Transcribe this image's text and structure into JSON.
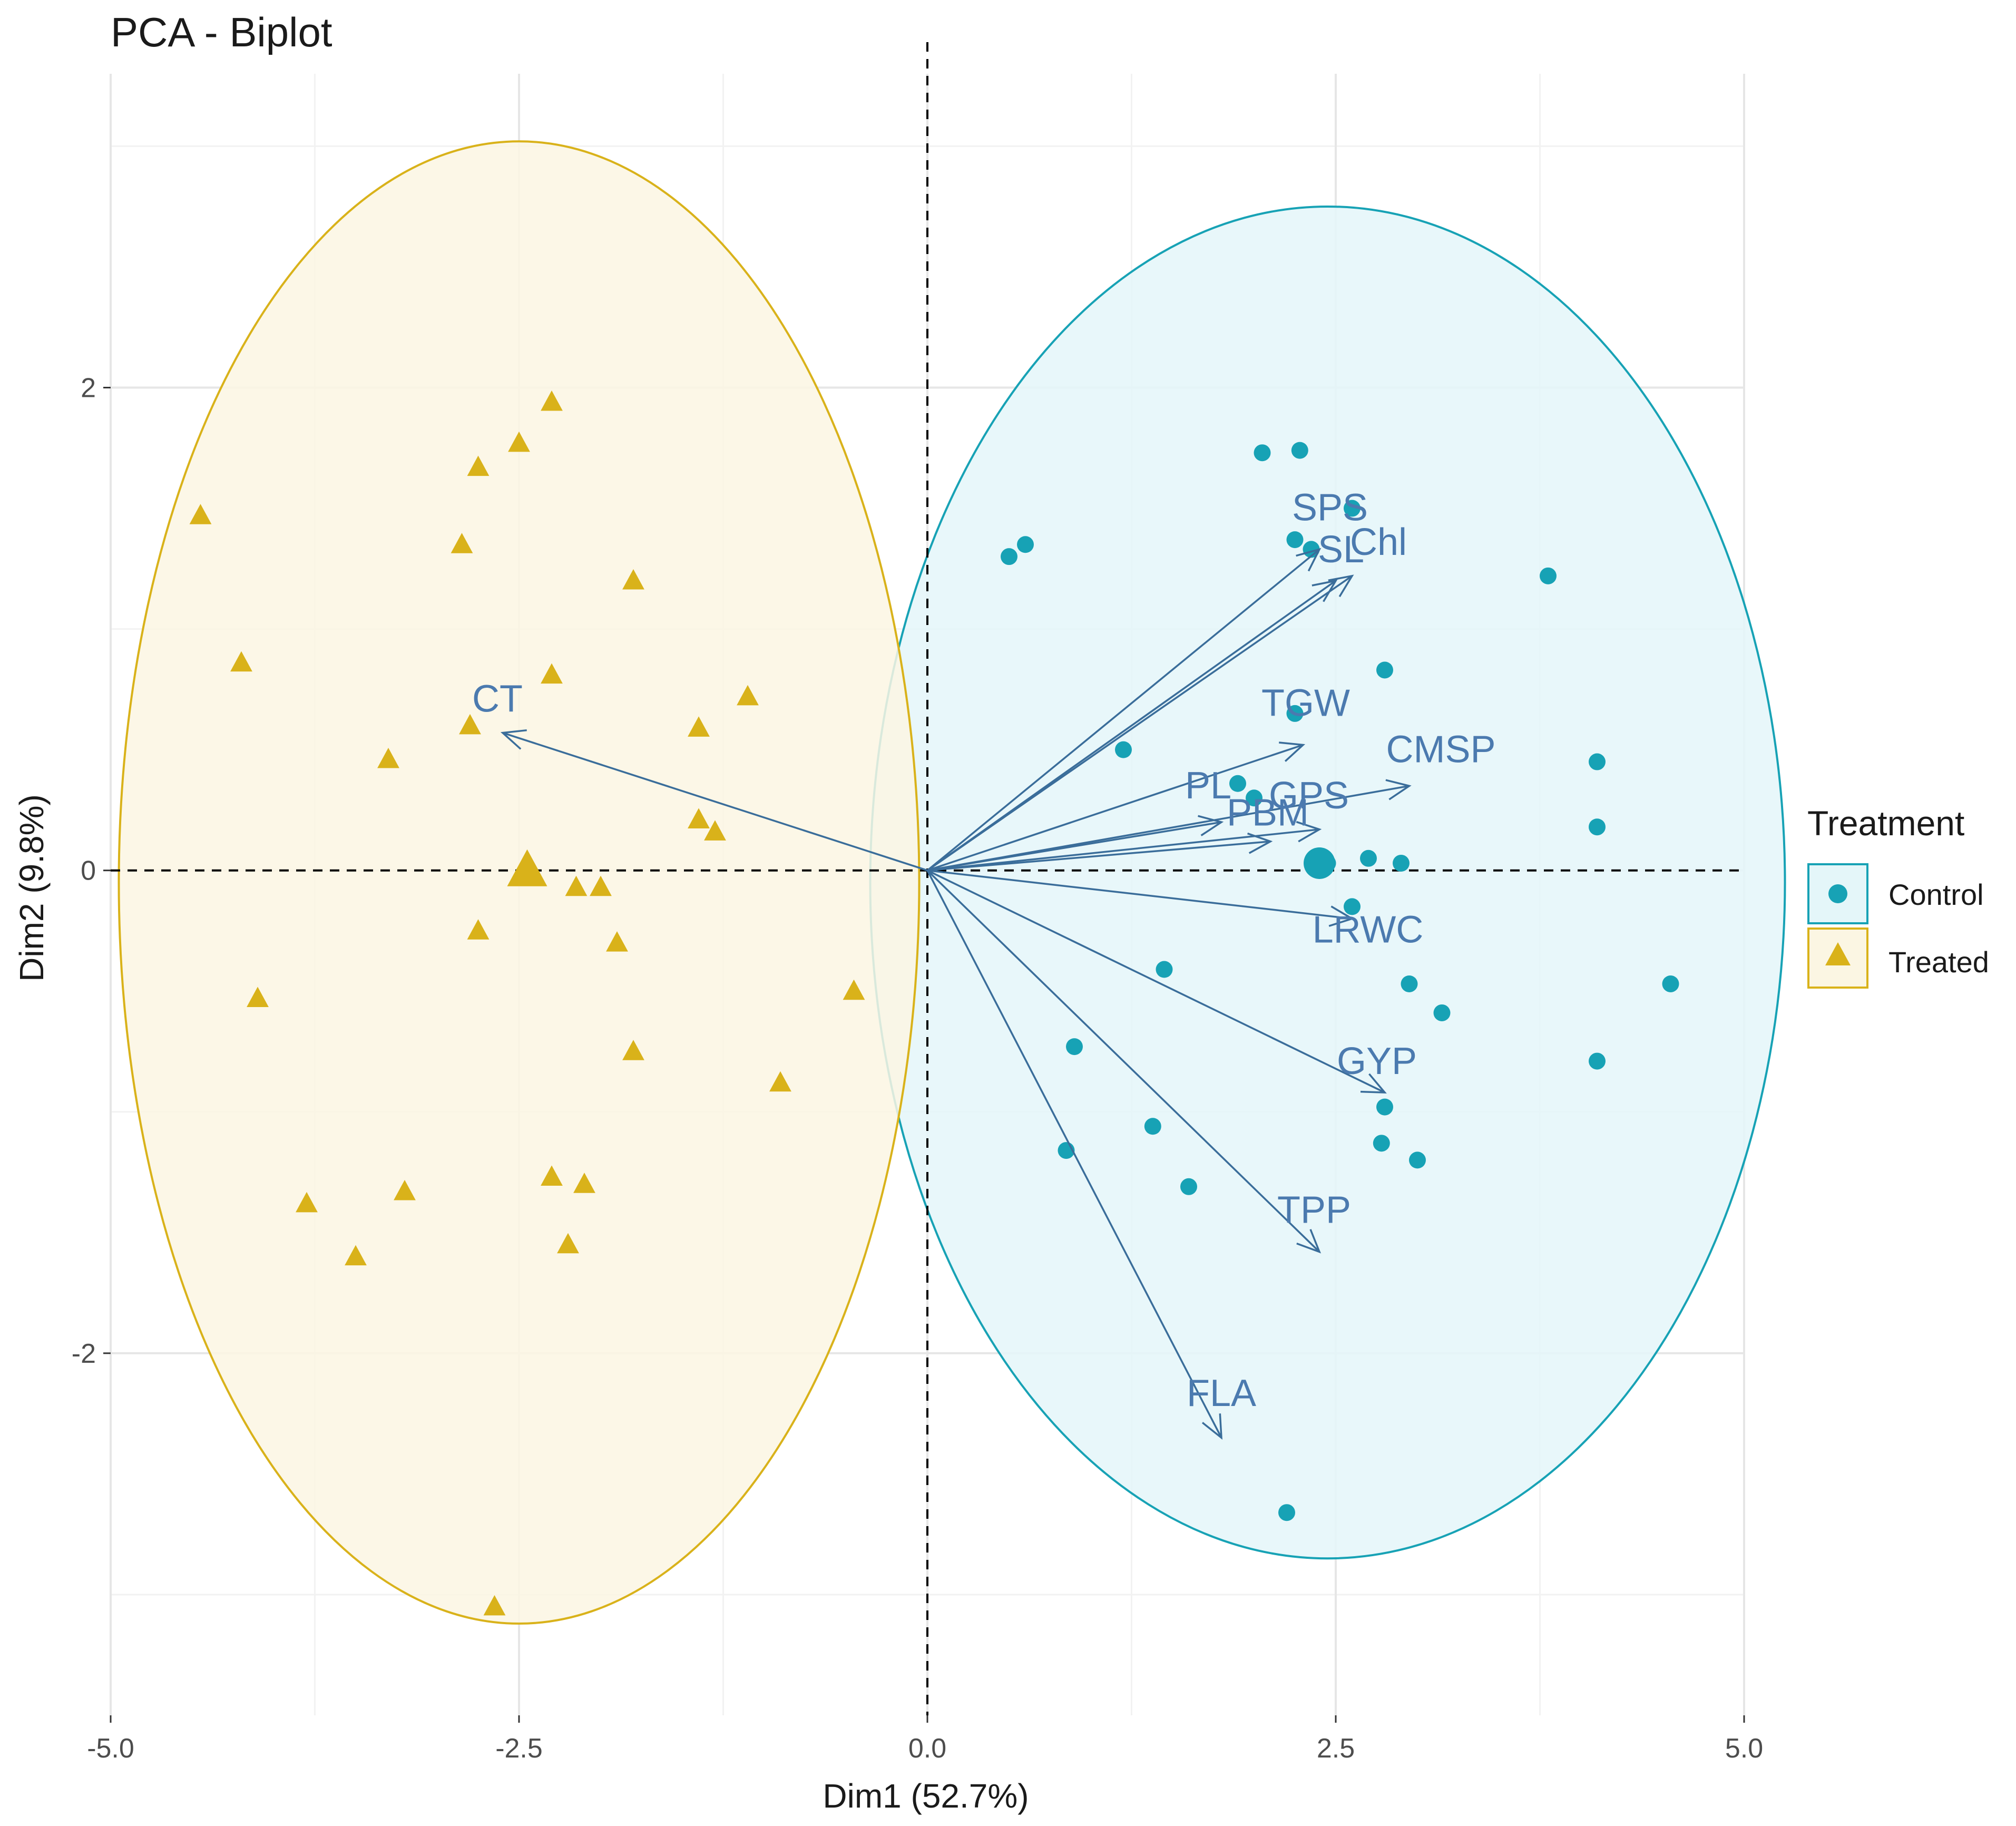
{
  "chart_data": {
    "type": "scatter",
    "subtype": "pca-biplot",
    "title": "PCA - Biplot",
    "xlabel": "Dim1 (52.7%)",
    "ylabel": "Dim2 (9.8%)",
    "xlim": [
      -5.0,
      5.0
    ],
    "ylim": [
      -3.5,
      3.3
    ],
    "xticks": [
      -5.0,
      -2.5,
      0.0,
      2.5,
      5.0
    ],
    "xtick_labels": [
      "-5.0",
      "-2.5",
      "0.0",
      "2.5",
      "5.0"
    ],
    "yticks": [
      -2,
      0,
      2
    ],
    "ytick_labels": [
      "-2",
      "0",
      "2"
    ],
    "grid": true,
    "legend": {
      "title": "Treatment",
      "position": "right",
      "entries": [
        {
          "label": "Control",
          "shape": "circle",
          "color": "#17a2b5"
        },
        {
          "label": "Treated",
          "shape": "triangle",
          "color": "#d9b21a"
        }
      ]
    },
    "series": [
      {
        "name": "Control",
        "color": "#17a2b5",
        "fill": "#e4f6f9",
        "shape": "circle",
        "mean": [
          2.4,
          0.03
        ],
        "ellipse": {
          "center": [
            2.45,
            -0.05
          ],
          "rx": 2.8,
          "ry": 2.8
        },
        "points": [
          [
            2.05,
            1.73
          ],
          [
            2.28,
            1.74
          ],
          [
            2.6,
            1.5
          ],
          [
            0.5,
            1.3
          ],
          [
            0.6,
            1.35
          ],
          [
            2.25,
            1.37
          ],
          [
            2.35,
            1.33
          ],
          [
            3.8,
            1.22
          ],
          [
            2.8,
            0.83
          ],
          [
            2.25,
            0.65
          ],
          [
            1.2,
            0.5
          ],
          [
            4.1,
            0.45
          ],
          [
            1.9,
            0.36
          ],
          [
            2.0,
            0.3
          ],
          [
            4.1,
            0.18
          ],
          [
            2.45,
            0.03
          ],
          [
            2.7,
            0.05
          ],
          [
            2.9,
            0.03
          ],
          [
            2.6,
            -0.15
          ],
          [
            1.45,
            -0.41
          ],
          [
            2.95,
            -0.47
          ],
          [
            3.15,
            -0.59
          ],
          [
            4.55,
            -0.47
          ],
          [
            0.9,
            -0.73
          ],
          [
            4.1,
            -0.79
          ],
          [
            2.8,
            -0.98
          ],
          [
            1.38,
            -1.06
          ],
          [
            0.85,
            -1.16
          ],
          [
            2.78,
            -1.13
          ],
          [
            3.0,
            -1.2
          ],
          [
            1.6,
            -1.31
          ],
          [
            2.2,
            -2.66
          ]
        ]
      },
      {
        "name": "Treated",
        "color": "#d9b21a",
        "fill": "#fbf6e3",
        "shape": "triangle",
        "mean": [
          -2.45,
          0.0
        ],
        "ellipse": {
          "center": [
            -2.5,
            -0.05
          ],
          "rx": 2.45,
          "ry": 3.07
        },
        "points": [
          [
            -2.3,
            1.94
          ],
          [
            -2.5,
            1.77
          ],
          [
            -2.75,
            1.67
          ],
          [
            -4.45,
            1.47
          ],
          [
            -2.85,
            1.35
          ],
          [
            -1.8,
            1.2
          ],
          [
            -4.2,
            0.86
          ],
          [
            -2.3,
            0.81
          ],
          [
            -1.1,
            0.72
          ],
          [
            -2.8,
            0.6
          ],
          [
            -1.4,
            0.59
          ],
          [
            -3.3,
            0.46
          ],
          [
            -1.4,
            0.21
          ],
          [
            -1.3,
            0.16
          ],
          [
            -2.15,
            -0.07
          ],
          [
            -2.0,
            -0.07
          ],
          [
            -2.75,
            -0.25
          ],
          [
            -1.9,
            -0.3
          ],
          [
            -4.1,
            -0.53
          ],
          [
            -0.45,
            -0.5
          ],
          [
            -1.8,
            -0.75
          ],
          [
            -0.9,
            -0.88
          ],
          [
            -2.3,
            -1.27
          ],
          [
            -2.1,
            -1.3
          ],
          [
            -3.8,
            -1.38
          ],
          [
            -3.2,
            -1.33
          ],
          [
            -2.2,
            -1.55
          ],
          [
            -3.5,
            -1.6
          ],
          [
            -2.65,
            -3.05
          ]
        ]
      }
    ],
    "variables": [
      {
        "name": "SPS",
        "x": 2.4,
        "y": 1.33
      },
      {
        "name": "SL",
        "x": 2.5,
        "y": 1.2
      },
      {
        "name": "Chl",
        "x": 2.6,
        "y": 1.22
      },
      {
        "name": "TGW",
        "x": 2.3,
        "y": 0.52
      },
      {
        "name": "CMSP",
        "x": 2.95,
        "y": 0.35
      },
      {
        "name": "PL",
        "x": 1.8,
        "y": 0.2
      },
      {
        "name": "PBM",
        "x": 2.1,
        "y": 0.12
      },
      {
        "name": "GPS",
        "x": 2.4,
        "y": 0.17
      },
      {
        "name": "LRWC",
        "x": 2.6,
        "y": -0.2
      },
      {
        "name": "GYP",
        "x": 2.8,
        "y": -0.92
      },
      {
        "name": "TPP",
        "x": 2.4,
        "y": -1.58
      },
      {
        "name": "FLA",
        "x": 1.8,
        "y": -2.35
      },
      {
        "name": "CT",
        "x": -2.6,
        "y": 0.57
      }
    ]
  }
}
